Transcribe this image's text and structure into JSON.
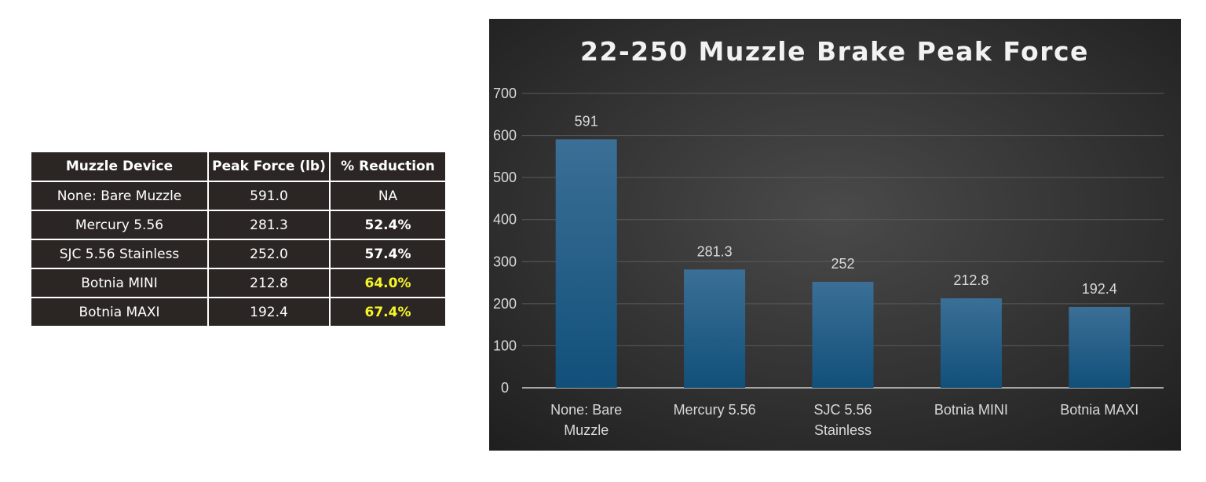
{
  "table": {
    "headers": [
      "Muzzle Device",
      "Peak Force (lb)",
      "% Reduction"
    ],
    "rows": [
      {
        "device": "None: Bare Muzzle",
        "force": "591.0",
        "reduction": "NA",
        "style": "normal"
      },
      {
        "device": "Mercury 5.56",
        "force": "281.3",
        "reduction": "52.4%",
        "style": "bold"
      },
      {
        "device": "SJC 5.56 Stainless",
        "force": "252.0",
        "reduction": "57.4%",
        "style": "bold"
      },
      {
        "device": "Botnia MINI",
        "force": "212.8",
        "reduction": "64.0%",
        "style": "highlight"
      },
      {
        "device": "Botnia MAXI",
        "force": "192.4",
        "reduction": "67.4%",
        "style": "highlight"
      }
    ],
    "highlight_color": "#f5f527",
    "background_color": "#2b2624"
  },
  "chart_data": {
    "type": "bar",
    "title": "22-250 Muzzle Brake Peak Force",
    "categories": [
      [
        "None: Bare",
        "Muzzle"
      ],
      [
        "Mercury 5.56"
      ],
      [
        "SJC 5.56",
        "Stainless"
      ],
      [
        "Botnia MINI"
      ],
      [
        "Botnia MAXI"
      ]
    ],
    "values": [
      591,
      281.3,
      252,
      212.8,
      192.4
    ],
    "data_labels": [
      "591",
      "281.3",
      "252",
      "212.8",
      "192.4"
    ],
    "ylim": [
      0,
      700
    ],
    "yticks": [
      "0",
      "100",
      "200",
      "300",
      "400",
      "500",
      "600",
      "700"
    ],
    "grid": true,
    "legend": "none",
    "bar_color": "#1f5f8b",
    "background_color": "#3a3a3a"
  }
}
